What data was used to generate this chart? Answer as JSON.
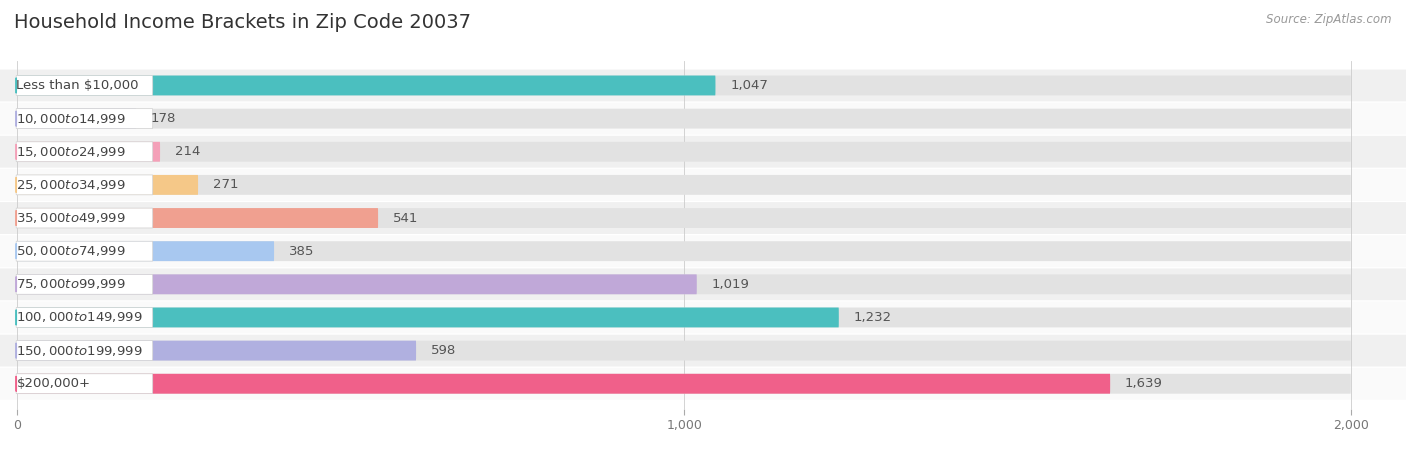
{
  "title": "Household Income Brackets in Zip Code 20037",
  "source": "Source: ZipAtlas.com",
  "categories": [
    "Less than $10,000",
    "$10,000 to $14,999",
    "$15,000 to $24,999",
    "$25,000 to $34,999",
    "$35,000 to $49,999",
    "$50,000 to $74,999",
    "$75,000 to $99,999",
    "$100,000 to $149,999",
    "$150,000 to $199,999",
    "$200,000+"
  ],
  "values": [
    1047,
    178,
    214,
    271,
    541,
    385,
    1019,
    1232,
    598,
    1639
  ],
  "bar_colors": [
    "#4bbfbf",
    "#b0b0e0",
    "#f4a0b8",
    "#f5c888",
    "#f0a090",
    "#a8c8f0",
    "#c0a8d8",
    "#4bbfbf",
    "#b0b0e0",
    "#f0608a"
  ],
  "row_bg_odd": "#f0f0f0",
  "row_bg_even": "#fafafa",
  "bar_bg_color": "#e2e2e2",
  "pill_bg": "#ffffff",
  "xlim": [
    0,
    2000
  ],
  "xticks": [
    0,
    1000,
    2000
  ],
  "title_fontsize": 14,
  "label_fontsize": 9.5,
  "value_fontsize": 9.5,
  "tick_fontsize": 9
}
